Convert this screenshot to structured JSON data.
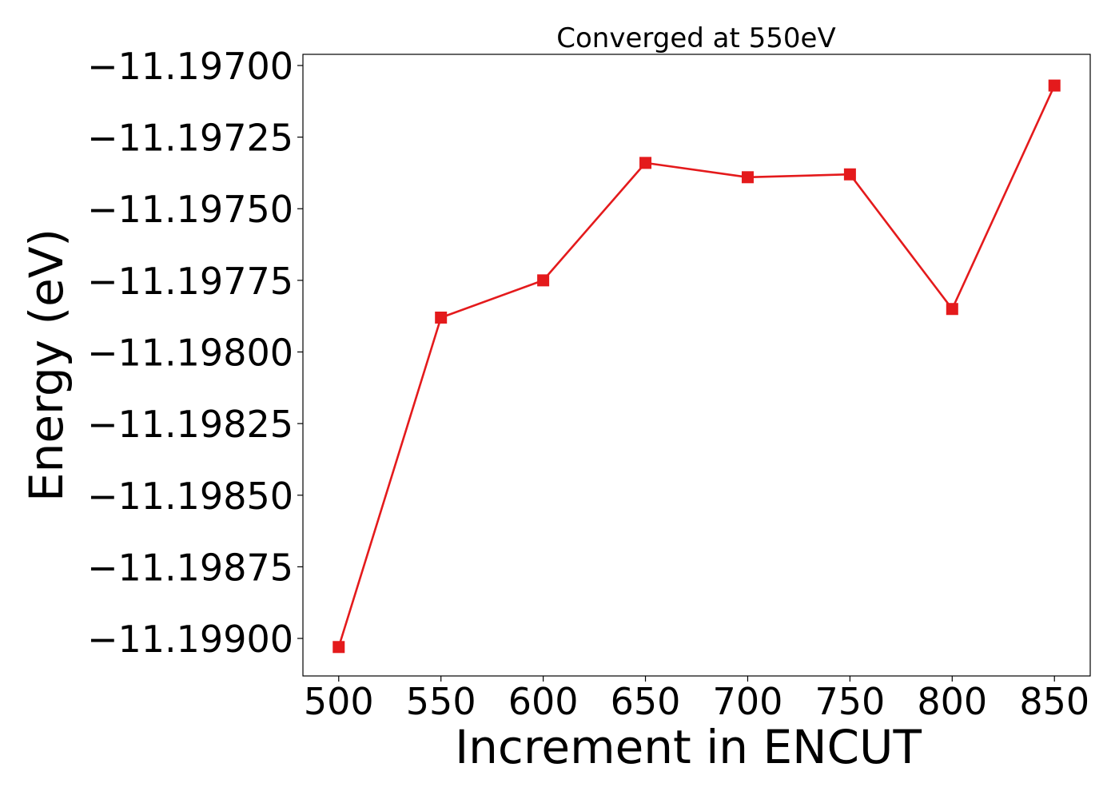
{
  "chart_data": {
    "type": "line",
    "title": "Converged at 550eV",
    "xlabel": "Increment in ENCUT",
    "ylabel": "Energy (eV)",
    "x": [
      500,
      550,
      600,
      650,
      700,
      750,
      800,
      850
    ],
    "series": [
      {
        "values": [
          -11.19903,
          -11.19788,
          -11.19775,
          -11.19734,
          -11.19739,
          -11.19738,
          -11.19785,
          -11.19707
        ],
        "color": "#e41a1c",
        "marker": "square"
      }
    ],
    "xticks": [
      500,
      550,
      600,
      650,
      700,
      750,
      800,
      850
    ],
    "xtick_labels": [
      "500",
      "550",
      "600",
      "650",
      "700",
      "750",
      "800",
      "850"
    ],
    "yticks": [
      -11.197,
      -11.19725,
      -11.1975,
      -11.19775,
      -11.198,
      -11.19825,
      -11.1985,
      -11.19875,
      -11.199
    ],
    "ytick_labels": [
      "−11.19700",
      "−11.19725",
      "−11.19750",
      "−11.19775",
      "−11.19800",
      "−11.19825",
      "−11.19850",
      "−11.19875",
      "−11.19900"
    ],
    "xlim": [
      482.5,
      867.5
    ],
    "ylim": [
      -11.199131,
      -11.196961
    ],
    "grid": false,
    "legend": false
  }
}
